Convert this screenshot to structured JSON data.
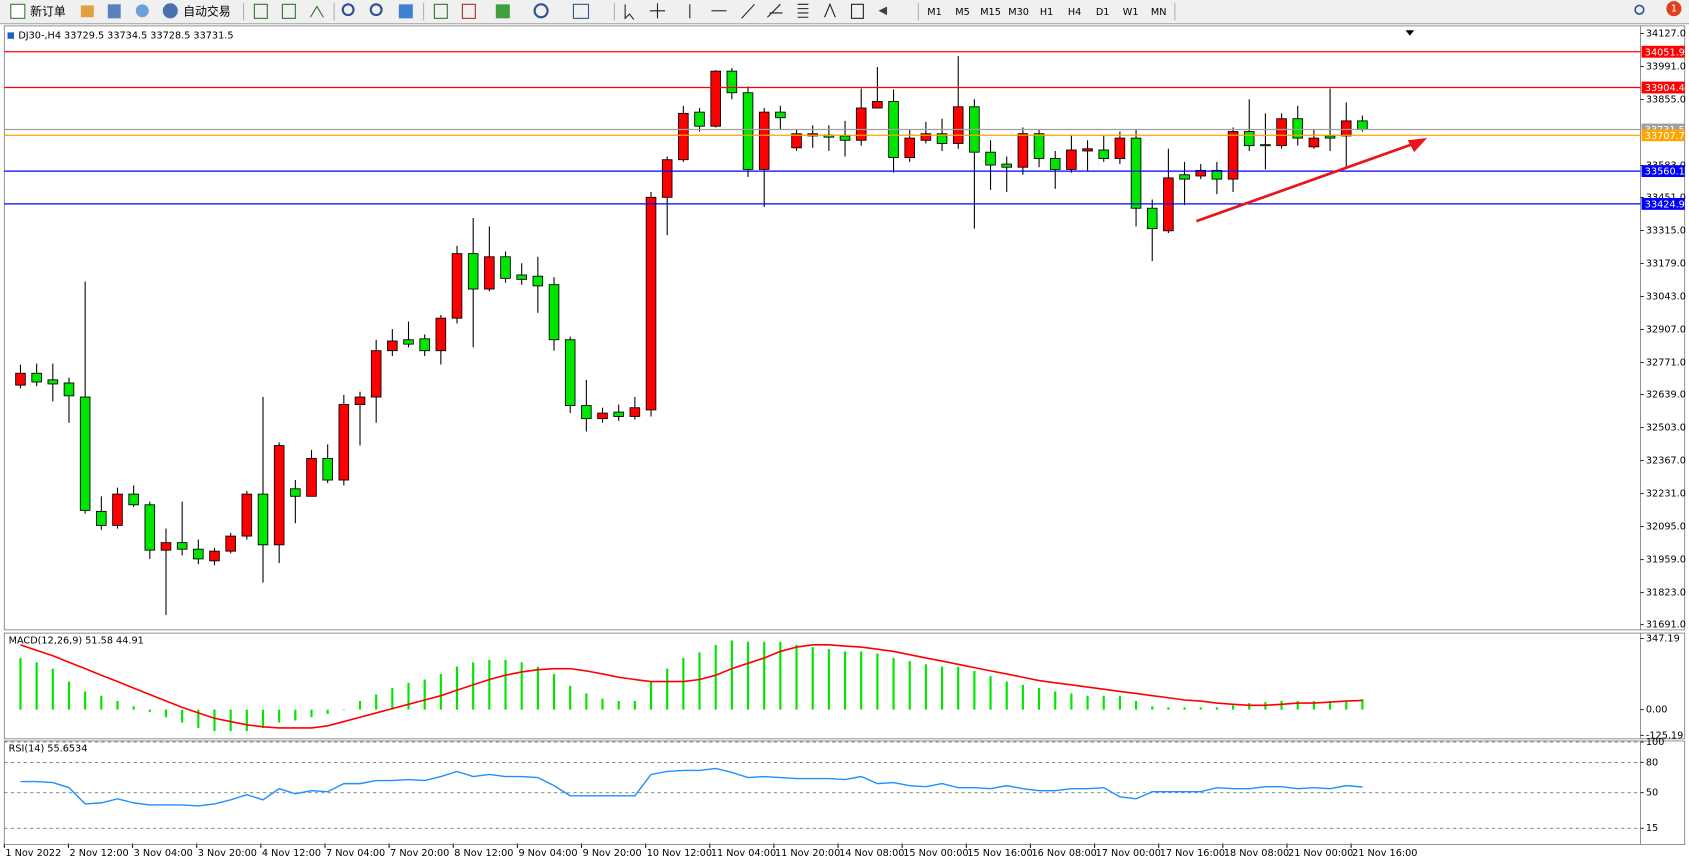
{
  "toolbar": {
    "new_order": "新订单",
    "auto_trading": "自动交易",
    "timeframes": [
      "M1",
      "M5",
      "M15",
      "M30",
      "H1",
      "H4",
      "D1",
      "W1",
      "MN"
    ],
    "notification": "1"
  },
  "chart_data": [
    {
      "type": "candlestick",
      "title": "DJ30-,H4 33729.5 33734.5 33728.5 33731.5",
      "up_color": "#ff0000",
      "down_color": "#00e600",
      "open": [
        32678,
        32727,
        32700,
        32687,
        32629,
        32158,
        32100,
        32229,
        32185,
        31998,
        32029,
        32002,
        31954,
        31994,
        32056,
        32229,
        32020,
        32251,
        32220,
        32376,
        32287,
        32598,
        32629,
        32820,
        32865,
        32869,
        32820,
        32954,
        33220,
        33074,
        33207,
        33132,
        33127,
        33092,
        32865,
        32594,
        32540,
        32567,
        32549,
        32576,
        33452,
        33607,
        33803,
        33745,
        33972,
        33883,
        33567,
        33803,
        33656,
        33705,
        33709,
        33705,
        33687,
        33820,
        33847,
        33616,
        33687,
        33714,
        33674,
        33825,
        33638,
        33589,
        33576,
        33714,
        33612,
        33567,
        33643,
        33647,
        33612,
        33696,
        33407,
        33314,
        33545,
        33540,
        33563,
        33527,
        33723,
        33669,
        33665,
        33776,
        33660,
        33705,
        33705,
        33767
      ],
      "high": [
        32763,
        32767,
        32767,
        32709,
        33105,
        32220,
        32256,
        32265,
        32198,
        32087,
        32198,
        32042,
        32007,
        32069,
        32242,
        32629,
        32442,
        32287,
        32411,
        32434,
        32638,
        32651,
        32865,
        32909,
        32940,
        32887,
        32967,
        33252,
        33367,
        33332,
        33229,
        33180,
        33207,
        33123,
        32878,
        32700,
        32585,
        32598,
        32629,
        33474,
        33620,
        33829,
        33820,
        33976,
        33985,
        33909,
        33820,
        33829,
        33732,
        33749,
        33749,
        33767,
        33900,
        33989,
        33896,
        33732,
        33763,
        33776,
        34034,
        33856,
        33687,
        33620,
        33740,
        33732,
        33643,
        33709,
        33687,
        33709,
        33723,
        33732,
        33443,
        33652,
        33598,
        33589,
        33598,
        33740,
        33856,
        33798,
        33798,
        33829,
        33732,
        33900,
        33843,
        33789
      ],
      "low": [
        32665,
        32674,
        32611,
        32523,
        32149,
        32082,
        32087,
        32176,
        31962,
        31731,
        31976,
        31940,
        31936,
        31985,
        32042,
        31865,
        31945,
        32109,
        32220,
        32274,
        32265,
        32429,
        32523,
        32798,
        32834,
        32798,
        32763,
        32932,
        32834,
        33065,
        33100,
        33092,
        32976,
        32820,
        32563,
        32487,
        32523,
        32531,
        32536,
        32549,
        33296,
        33598,
        33723,
        33740,
        33856,
        33536,
        33412,
        33732,
        33643,
        33656,
        33643,
        33620,
        33665,
        33820,
        33554,
        33598,
        33674,
        33643,
        33652,
        33323,
        33483,
        33474,
        33545,
        33576,
        33487,
        33554,
        33563,
        33598,
        33589,
        33332,
        33189,
        33305,
        33420,
        33527,
        33465,
        33474,
        33643,
        33567,
        33652,
        33665,
        33652,
        33643,
        33576,
        33723
      ],
      "close": [
        32727,
        32691,
        32683,
        32634,
        32162,
        32100,
        32229,
        32185,
        31998,
        32029,
        32002,
        31962,
        31994,
        32056,
        32229,
        32020,
        32429,
        32220,
        32376,
        32287,
        32598,
        32629,
        32820,
        32860,
        32847,
        32820,
        32954,
        33220,
        33074,
        33207,
        33118,
        33114,
        33087,
        32865,
        32594,
        32540,
        32563,
        32549,
        32585,
        33452,
        33607,
        33798,
        33745,
        33972,
        33883,
        33567,
        33803,
        33780,
        33714,
        33714,
        33700,
        33687,
        33820,
        33847,
        33616,
        33696,
        33714,
        33674,
        33825,
        33638,
        33585,
        33576,
        33714,
        33612,
        33567,
        33647,
        33652,
        33612,
        33696,
        33407,
        33323,
        33532,
        33527,
        33563,
        33527,
        33723,
        33665,
        33665,
        33776,
        33696,
        33696,
        33696,
        33767,
        33731.5
      ],
      "ylim": [
        31674,
        34154
      ],
      "yticks": [
        {
          "value": 34127,
          "label": "34127.0"
        },
        {
          "value": 33991,
          "label": "33991.0"
        },
        {
          "value": 33855,
          "label": "33855.0"
        },
        {
          "value": 33583,
          "label": "33583.0"
        },
        {
          "value": 33451,
          "label": "33451.0"
        },
        {
          "value": 33315,
          "label": "33315.0"
        },
        {
          "value": 33179,
          "label": "33179.0"
        },
        {
          "value": 33043,
          "label": "33043.0"
        },
        {
          "value": 32907,
          "label": "32907.0"
        },
        {
          "value": 32771,
          "label": "32771.0"
        },
        {
          "value": 32639,
          "label": "32639.0"
        },
        {
          "value": 32503,
          "label": "32503.0"
        },
        {
          "value": 32367,
          "label": "32367.0"
        },
        {
          "value": 32231,
          "label": "32231.0"
        },
        {
          "value": 32095,
          "label": "32095.0"
        },
        {
          "value": 31959,
          "label": "31959.0"
        },
        {
          "value": 31823,
          "label": "31823.0"
        },
        {
          "value": 31691,
          "label": "31691.0"
        }
      ],
      "levels": [
        {
          "value": 34051.9,
          "label": "34051.9",
          "color": "#ff0000"
        },
        {
          "value": 33904.4,
          "label": "33904.4",
          "color": "#ff0000"
        },
        {
          "value": 33731.5,
          "label": "33731.5",
          "color": "#a0a0a0"
        },
        {
          "value": 33707.7,
          "label": "33707.7",
          "color": "#ffa500"
        },
        {
          "value": 33560.1,
          "label": "33560.1",
          "color": "#0000ff"
        },
        {
          "value": 33424.9,
          "label": "33424.9",
          "color": "#0000ff"
        }
      ],
      "time_labels": [
        "1 Nov 2022",
        "2 Nov 12:00",
        "3 Nov 04:00",
        "3 Nov 20:00",
        "4 Nov 12:00",
        "7 Nov 04:00",
        "7 Nov 20:00",
        "8 Nov 12:00",
        "9 Nov 04:00",
        "9 Nov 20:00",
        "10 Nov 12:00",
        "11 Nov 04:00",
        "11 Nov 20:00",
        "14 Nov 08:00",
        "15 Nov 00:00",
        "15 Nov 16:00",
        "16 Nov 08:00",
        "17 Nov 00:00",
        "17 Nov 16:00",
        "18 Nov 08:00",
        "21 Nov 00:00",
        "21 Nov 16:00"
      ]
    },
    {
      "type": "macd",
      "title": "MACD(12,26,9) 51.58 44.91",
      "color": "#00e600",
      "signal_color": "#ff0000",
      "values": [
        252,
        231,
        200,
        137,
        89,
        68,
        42,
        16,
        -11,
        -37,
        -63,
        -89,
        -105,
        -105,
        -105,
        -89,
        -63,
        -53,
        -37,
        -21,
        0,
        42,
        74,
        105,
        131,
        147,
        174,
        210,
        231,
        242,
        242,
        231,
        210,
        174,
        116,
        79,
        53,
        42,
        42,
        137,
        200,
        252,
        279,
        316,
        337,
        331,
        331,
        331,
        316,
        305,
        295,
        284,
        284,
        274,
        252,
        237,
        221,
        210,
        210,
        189,
        163,
        137,
        121,
        105,
        89,
        79,
        68,
        68,
        68,
        42,
        16,
        11,
        11,
        11,
        11,
        21,
        32,
        37,
        42,
        42,
        42,
        42,
        42,
        51.58
      ],
      "signal": [
        316,
        289,
        263,
        231,
        200,
        168,
        137,
        105,
        74,
        42,
        11,
        -16,
        -42,
        -58,
        -74,
        -84,
        -89,
        -89,
        -89,
        -79,
        -58,
        -37,
        -16,
        5,
        26,
        47,
        68,
        95,
        121,
        147,
        168,
        184,
        195,
        200,
        200,
        189,
        174,
        158,
        147,
        137,
        137,
        137,
        147,
        168,
        200,
        226,
        252,
        284,
        305,
        316,
        316,
        310,
        305,
        295,
        284,
        268,
        252,
        237,
        221,
        205,
        189,
        174,
        158,
        142,
        131,
        121,
        110,
        100,
        89,
        79,
        68,
        58,
        47,
        42,
        32,
        26,
        21,
        21,
        26,
        32,
        32,
        37,
        42,
        44.91
      ],
      "ylim": [
        -137,
        368
      ],
      "yticks": [
        {
          "value": 347.19,
          "label": "347.19"
        },
        {
          "value": 0,
          "label": "0.00"
        },
        {
          "value": -125.19,
          "label": "-125.19"
        }
      ]
    },
    {
      "type": "rsi",
      "title": "RSI(14) 55.6534",
      "color": "#1e90ff",
      "values": [
        61,
        61,
        60,
        55,
        39,
        40,
        44,
        40,
        38,
        38,
        38,
        37,
        39,
        43,
        48,
        43,
        54,
        49,
        52,
        51,
        59,
        59,
        62,
        62,
        63,
        62,
        66,
        71,
        66,
        68,
        66,
        66,
        65,
        57,
        47,
        47,
        47,
        47,
        47,
        68,
        71,
        72,
        72,
        74,
        70,
        65,
        66,
        65,
        64,
        64,
        64,
        63,
        66,
        59,
        60,
        57,
        56,
        59,
        55,
        55,
        54,
        57,
        54,
        52,
        52,
        54,
        54,
        55,
        46,
        44,
        51,
        51,
        51,
        51,
        55,
        54,
        54,
        56,
        56,
        54,
        55,
        54,
        57,
        55.6534
      ],
      "ylim": [
        0,
        100
      ],
      "yticks": [
        100,
        80,
        50,
        15
      ],
      "grid": "dashed"
    }
  ]
}
